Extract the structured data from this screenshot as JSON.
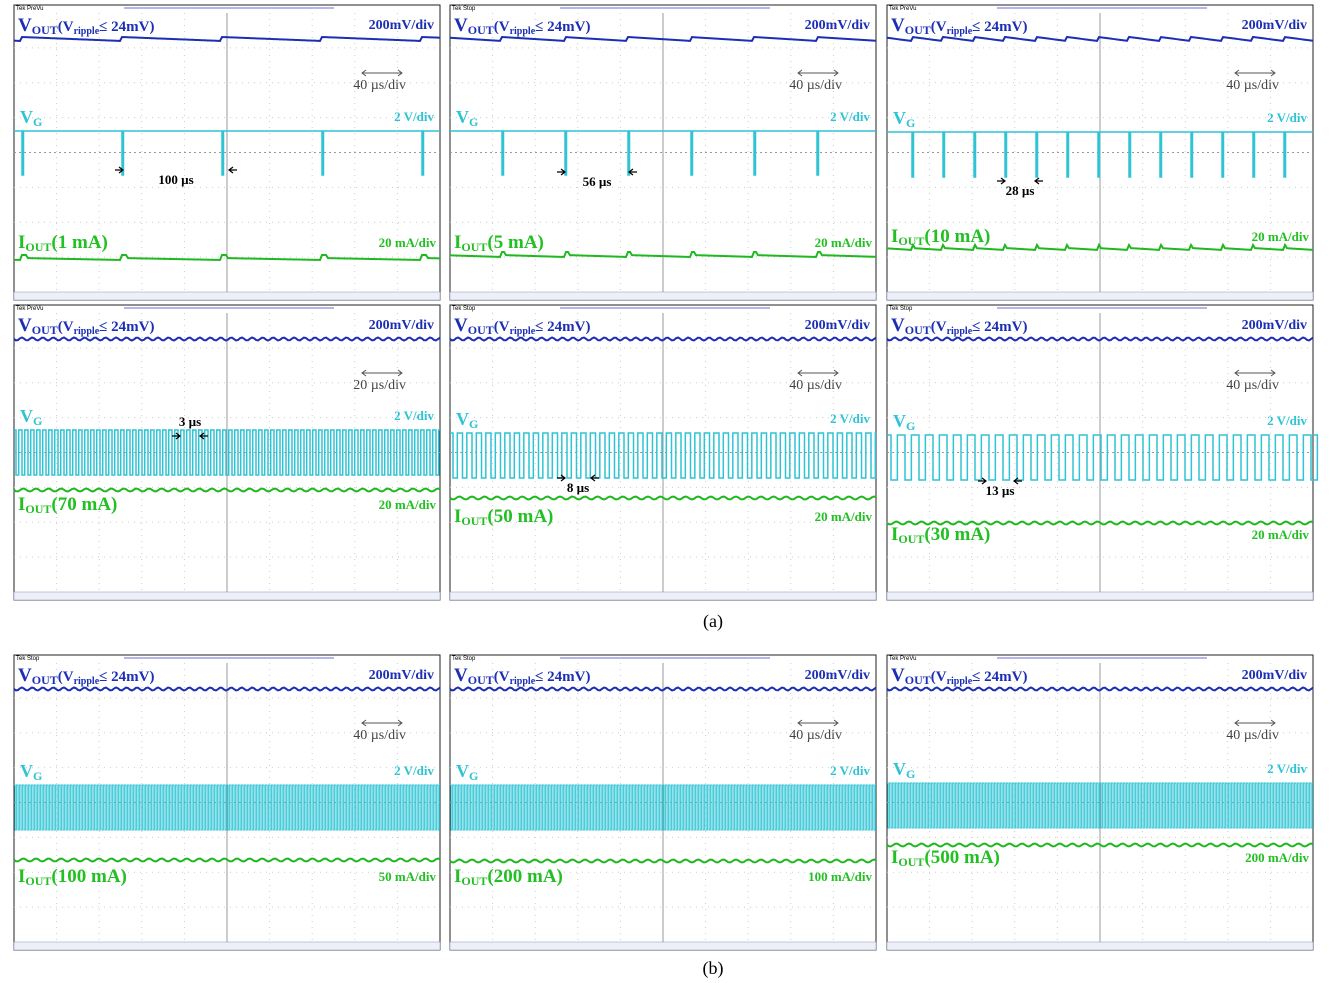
{
  "labels": {
    "v": "V",
    "out": "OUT",
    "ripple_open": "(V",
    "ripple_sub": "ripple",
    "ripple_rest": "≤ 24mV)",
    "g": "G",
    "i": "I"
  },
  "panels": [
    {
      "tek": "Tek PreVu",
      "vout_scale": "200mV/div",
      "timebase": "40 µs/div",
      "vg_scale": "2 V/div",
      "period": "100 µs",
      "iout_current": "(1 mA)",
      "iout_scale": "20 mA/div"
    },
    {
      "tek": "Tek Stop",
      "vout_scale": "200mV/div",
      "timebase": "40 µs/div",
      "vg_scale": "2 V/div",
      "period": "56 µs",
      "iout_current": "(5 mA)",
      "iout_scale": "20 mA/div"
    },
    {
      "tek": "Tek PreVu",
      "vout_scale": "200mV/div",
      "timebase": "40 µs/div",
      "vg_scale": "2 V/div",
      "period": "28 µs",
      "iout_current": "(10 mA)",
      "iout_scale": "20 mA/div"
    },
    {
      "tek": "Tek PreVu",
      "vout_scale": "200mV/div",
      "timebase": "20 µs/div",
      "vg_scale": "2 V/div",
      "period": "3 µs",
      "iout_current": "(70 mA)",
      "iout_scale": "20 mA/div"
    },
    {
      "tek": "Tek Stop",
      "vout_scale": "200mV/div",
      "timebase": "40 µs/div",
      "vg_scale": "2 V/div",
      "period": "8 µs",
      "iout_current": "(50 mA)",
      "iout_scale": "20 mA/div"
    },
    {
      "tek": "Tek Stop",
      "vout_scale": "200mV/div",
      "timebase": "40 µs/div",
      "vg_scale": "2 V/div",
      "period": "13 µs",
      "iout_current": "(30 mA)",
      "iout_scale": "20 mA/div"
    },
    {
      "tek": "Tek Stop",
      "vout_scale": "200mV/div",
      "timebase": "40 µs/div",
      "vg_scale": "2 V/div",
      "iout_current": "(100 mA)",
      "iout_scale": "50 mA/div"
    },
    {
      "tek": "Tek Stop",
      "vout_scale": "200mV/div",
      "timebase": "40 µs/div",
      "vg_scale": "2 V/div",
      "iout_current": "(200 mA)",
      "iout_scale": "100 mA/div"
    },
    {
      "tek": "Tek PreVu",
      "vout_scale": "200mV/div",
      "timebase": "40 µs/div",
      "vg_scale": "2 V/div",
      "iout_current": "(500 mA)",
      "iout_scale": "200 mA/div"
    }
  ],
  "captions": [
    "(a)",
    "(b)"
  ]
}
